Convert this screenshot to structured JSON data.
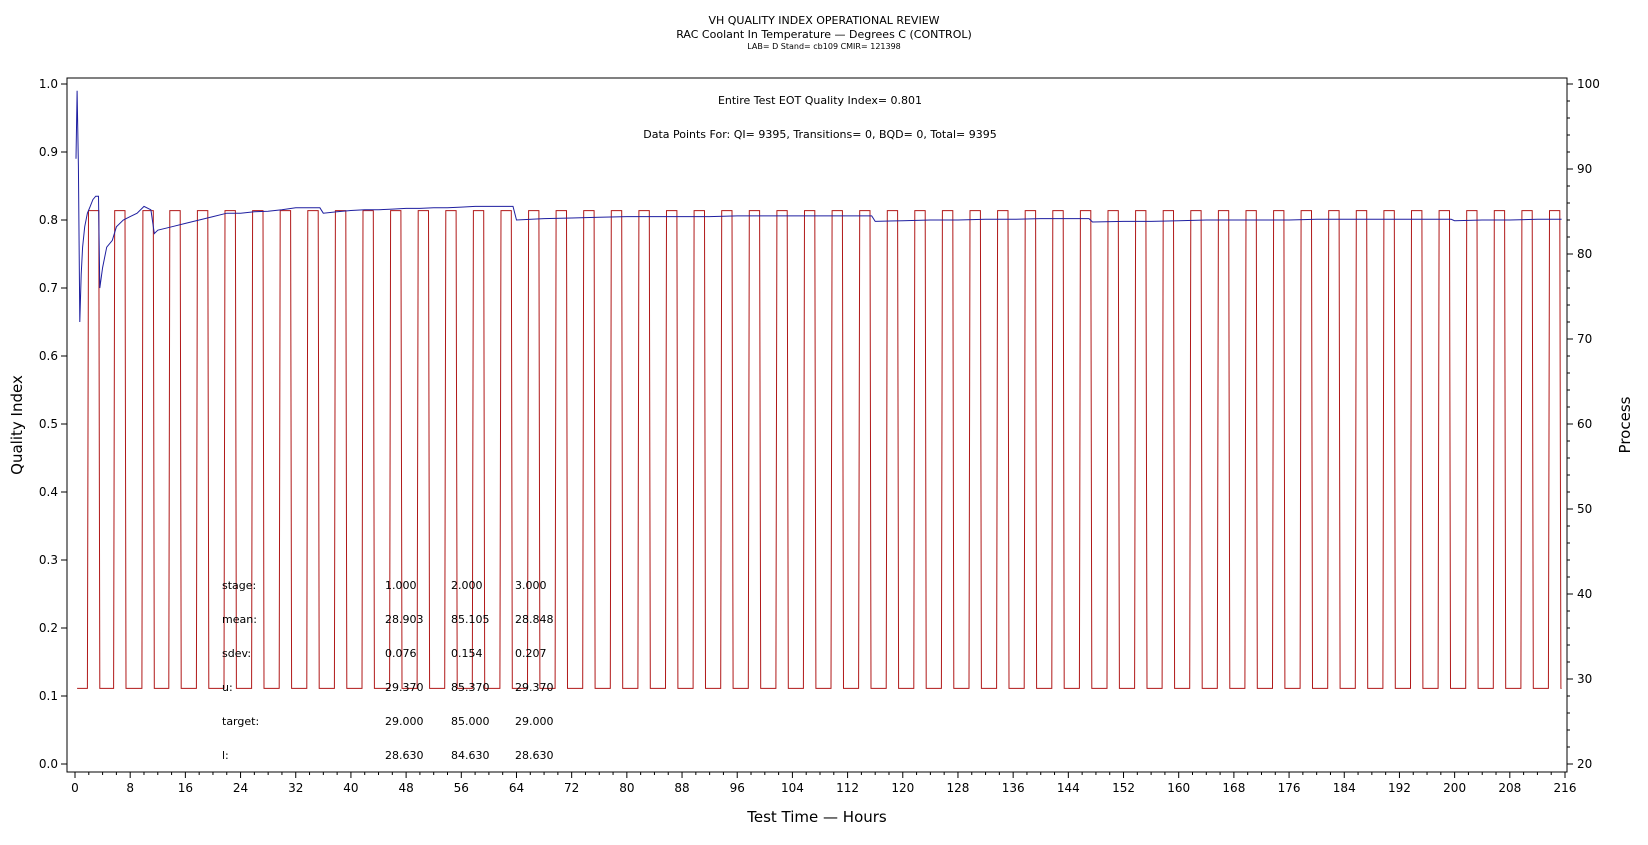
{
  "header": {
    "title": "VH QUALITY INDEX OPERATIONAL REVIEW",
    "subtitle": "RAC Coolant In Temperature — Degrees C (CONTROL)",
    "info": "LAB= D Stand= cb109 CMIR= 121398"
  },
  "annotations": {
    "eot_qi": "Entire Test EOT Quality Index=   0.801",
    "data_points": "Data Points For: QI=  9395, Transitions=     0, BQD=     0, Total=  9395"
  },
  "stats_table": {
    "rows": [
      {
        "label": "stage:",
        "values": [
          "1.000",
          "2.000",
          "3.000"
        ]
      },
      {
        "label": "mean:",
        "values": [
          "28.903",
          "85.105",
          "28.848"
        ]
      },
      {
        "label": "sdev:",
        "values": [
          "0.076",
          "0.154",
          "0.207"
        ]
      },
      {
        "label": "u:",
        "values": [
          "29.370",
          "85.370",
          "29.370"
        ]
      },
      {
        "label": "target:",
        "values": [
          "29.000",
          "85.000",
          "29.000"
        ]
      },
      {
        "label": "l:",
        "values": [
          "28.630",
          "84.630",
          "28.630"
        ]
      }
    ]
  },
  "chart_data": {
    "type": "line",
    "title": "VH QUALITY INDEX OPERATIONAL REVIEW",
    "subtitle": "RAC Coolant In Temperature — Degrees C (CONTROL)",
    "xlabel": "Test Time — Hours",
    "ylabel": "Quality Index",
    "y2label": "Process",
    "xlim": [
      0,
      216
    ],
    "ylim": [
      0.0,
      1.0
    ],
    "y2lim": [
      20,
      100
    ],
    "xticks": [
      0,
      8,
      16,
      24,
      32,
      40,
      48,
      56,
      64,
      72,
      80,
      88,
      96,
      104,
      112,
      120,
      128,
      136,
      144,
      152,
      160,
      168,
      176,
      184,
      192,
      200,
      208,
      216
    ],
    "yticks": [
      "0.0",
      "0.1",
      "0.2",
      "0.3",
      "0.4",
      "0.5",
      "0.6",
      "0.7",
      "0.8",
      "0.9",
      "1.0"
    ],
    "y2ticks": [
      20,
      30,
      40,
      50,
      60,
      70,
      80,
      90,
      100
    ],
    "grid": false,
    "series": [
      {
        "role": "quality_index",
        "axis": "left",
        "color": "#1f1fa0",
        "x": [
          0.15,
          0.3,
          0.5,
          0.7,
          0.9,
          1.1,
          1.4,
          1.8,
          2.2,
          2.6,
          3.0,
          3.4,
          3.6,
          4.0,
          4.6,
          5.4,
          6.0,
          7.0,
          8.0,
          9.0,
          10.0,
          11.0,
          11.5,
          12.0,
          14.0,
          16.0,
          18.0,
          20.0,
          22.0,
          24.0,
          26.0,
          28.0,
          30.0,
          32.0,
          34.0,
          35.5,
          36.0,
          38.0,
          40.0,
          42.0,
          44.0,
          46.0,
          48.0,
          50.0,
          52.0,
          54.0,
          56.0,
          58.0,
          60.0,
          62.0,
          63.5,
          64.0,
          68.0,
          72.0,
          76.0,
          80.0,
          84.0,
          88.0,
          92.0,
          96.0,
          100.0,
          104.0,
          108.0,
          112.0,
          115.5,
          116.0,
          120.0,
          124.0,
          128.0,
          132.0,
          136.0,
          140.0,
          144.0,
          147.0,
          147.5,
          152.0,
          156.0,
          160.0,
          164.0,
          168.0,
          172.0,
          176.0,
          180.0,
          184.0,
          188.0,
          192.0,
          196.0,
          199.5,
          200.0,
          204.0,
          208.0,
          212.0,
          215.5
        ],
        "y": [
          0.89,
          0.99,
          0.88,
          0.65,
          0.72,
          0.76,
          0.79,
          0.81,
          0.82,
          0.83,
          0.835,
          0.835,
          0.7,
          0.73,
          0.76,
          0.77,
          0.79,
          0.8,
          0.805,
          0.81,
          0.82,
          0.815,
          0.78,
          0.785,
          0.79,
          0.795,
          0.8,
          0.805,
          0.81,
          0.81,
          0.812,
          0.813,
          0.815,
          0.818,
          0.818,
          0.818,
          0.81,
          0.812,
          0.814,
          0.815,
          0.815,
          0.816,
          0.817,
          0.817,
          0.818,
          0.818,
          0.819,
          0.82,
          0.82,
          0.82,
          0.82,
          0.8,
          0.802,
          0.803,
          0.804,
          0.805,
          0.805,
          0.805,
          0.805,
          0.806,
          0.806,
          0.806,
          0.806,
          0.806,
          0.806,
          0.798,
          0.799,
          0.8,
          0.8,
          0.801,
          0.801,
          0.802,
          0.802,
          0.802,
          0.797,
          0.798,
          0.798,
          0.799,
          0.8,
          0.8,
          0.8,
          0.8,
          0.801,
          0.801,
          0.801,
          0.801,
          0.801,
          0.801,
          0.799,
          0.8,
          0.8,
          0.801,
          0.801
        ]
      },
      {
        "role": "process",
        "axis": "right",
        "color": "#b01818",
        "low": 28.9,
        "high": 85.1,
        "pulse_starts": [
          1.8,
          5.6,
          9.7,
          13.6,
          17.6,
          21.6,
          25.6,
          29.6,
          33.6,
          37.6,
          41.6,
          45.6,
          49.6,
          53.6,
          57.6,
          61.6,
          65.6,
          69.6,
          73.6,
          77.6,
          81.6,
          85.6,
          89.6,
          93.6,
          97.6,
          101.6,
          105.6,
          109.6,
          113.6,
          117.6,
          121.6,
          125.6,
          129.6,
          133.6,
          137.6,
          141.6,
          145.6,
          149.6,
          153.6,
          157.6,
          161.6,
          165.6,
          169.6,
          173.6,
          177.6,
          181.6,
          185.6,
          189.6,
          193.6,
          197.6,
          201.6,
          205.6,
          209.6,
          213.6
        ],
        "pulse_width_hours": 1.8,
        "end_hours": 215.5
      }
    ]
  }
}
